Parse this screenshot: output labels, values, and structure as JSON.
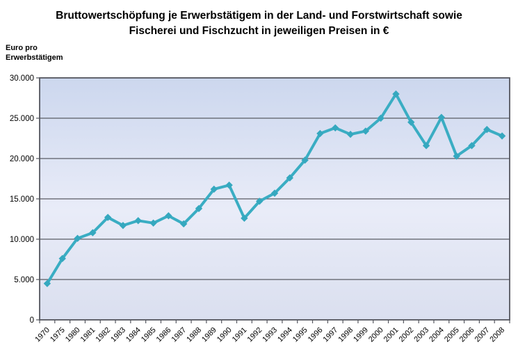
{
  "title": {
    "line1": "Bruttowertschöpfung je Erwerbstätigem in der Land- und Forstwirtschaft sowie",
    "line2": "Fischerei und Fischzucht in jeweiligen Preisen in €"
  },
  "y_axis_unit": {
    "line1": "Euro pro",
    "line2": "Erwerbstätigem"
  },
  "chart_data": {
    "type": "line",
    "title": "Bruttowertschöpfung je Erwerbstätigem in der Land- und Forstwirtschaft sowie Fischerei und Fischzucht in jeweiligen Preisen in €",
    "ylabel": "Euro pro Erwerbstätigem",
    "xlabel": "",
    "unit": "EUR",
    "categories": [
      "1970",
      "1975",
      "1980",
      "1981",
      "1982",
      "1983",
      "1984",
      "1985",
      "1986",
      "1987",
      "1988",
      "1989",
      "1990",
      "1991",
      "1992",
      "1993",
      "1994",
      "1995",
      "1996",
      "1997",
      "1998",
      "1999",
      "2000",
      "2001",
      "2002",
      "2003",
      "2004",
      "2005",
      "2006",
      "2007",
      "2008"
    ],
    "values": [
      4500,
      7600,
      10100,
      10800,
      12700,
      11700,
      12300,
      12000,
      12900,
      11900,
      13800,
      16200,
      16700,
      12600,
      14700,
      15700,
      17600,
      19800,
      23100,
      23800,
      23000,
      23400,
      25000,
      28000,
      24500,
      21600,
      25100,
      20300,
      21600,
      23600,
      22800
    ],
    "ylim": [
      0,
      30000
    ],
    "y_ticks": [
      0,
      5000,
      10000,
      15000,
      20000,
      25000,
      30000
    ],
    "y_tick_labels": [
      "0",
      "5.000",
      "10.000",
      "15.000",
      "20.000",
      "25.000",
      "30.000"
    ],
    "grid": true,
    "legend": "none",
    "marker": "diamond",
    "x_label_rotation_deg": -45,
    "colors": {
      "line": "#3aadc3",
      "marker": "#35a8bf",
      "grid": "#595b63",
      "axis": "#54565e",
      "text": "#000000"
    },
    "plot_bg_gradient": [
      {
        "offset": 0,
        "color": "#ccd7ee"
      },
      {
        "offset": 0.55,
        "color": "#e9ecf8"
      },
      {
        "offset": 1,
        "color": "#dadfef"
      }
    ]
  }
}
